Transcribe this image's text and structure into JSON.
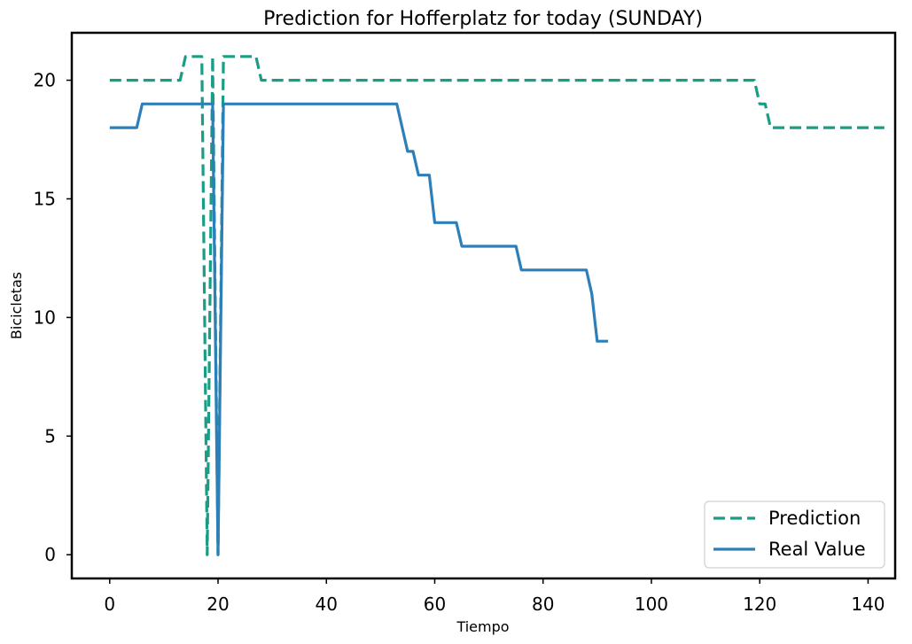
{
  "chart_data": {
    "type": "line",
    "title": "Prediction for Hofferplatz for today (SUNDAY)",
    "xlabel": "Tiempo",
    "ylabel": "Bicicletas",
    "xlim": [
      -7,
      145
    ],
    "ylim": [
      -1,
      22
    ],
    "xticks": [
      0,
      20,
      40,
      60,
      80,
      100,
      120,
      140
    ],
    "yticks": [
      0,
      5,
      10,
      15,
      20
    ],
    "grid": false,
    "legend_position": "bottom-right",
    "series": [
      {
        "name": "Prediction",
        "color": "#1a9c85",
        "style": "dashed",
        "points": [
          [
            0,
            20
          ],
          [
            13,
            20
          ],
          [
            14,
            21
          ],
          [
            17,
            21
          ],
          [
            18,
            0
          ],
          [
            19,
            21
          ],
          [
            20,
            0
          ],
          [
            21,
            21
          ],
          [
            27,
            21
          ],
          [
            28,
            20
          ],
          [
            119,
            20
          ],
          [
            120,
            19
          ],
          [
            121,
            19
          ],
          [
            122,
            18
          ],
          [
            143,
            18
          ]
        ]
      },
      {
        "name": "Real Value",
        "color": "#2c7fb8",
        "style": "solid",
        "points": [
          [
            0,
            18
          ],
          [
            5,
            18
          ],
          [
            6,
            19
          ],
          [
            19,
            19
          ],
          [
            20,
            0
          ],
          [
            21,
            19
          ],
          [
            53,
            19
          ],
          [
            55,
            17
          ],
          [
            56,
            17
          ],
          [
            57,
            16
          ],
          [
            59,
            16
          ],
          [
            60,
            14
          ],
          [
            64,
            14
          ],
          [
            65,
            13
          ],
          [
            75,
            13
          ],
          [
            76,
            12
          ],
          [
            88,
            12
          ],
          [
            89,
            11
          ],
          [
            90,
            9
          ],
          [
            92,
            9
          ]
        ]
      }
    ]
  }
}
